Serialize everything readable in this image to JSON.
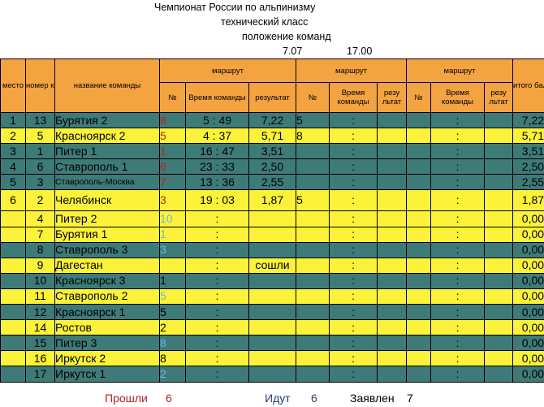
{
  "header": {
    "line1": "Чемпионат России по альпинизму",
    "line2": "технический класс",
    "line3": "положение команд",
    "date": "7.07",
    "time": "17.00"
  },
  "columns": {
    "place": "место",
    "team_number": "номер команды",
    "team_name": "название команды",
    "route": "маршрут",
    "num": "№",
    "team_time": "Время команды",
    "result": "результат",
    "team_time2": "Время команды",
    "result_short": "резу льтат",
    "result_short2": "резу льтат",
    "total": "итого баллов"
  },
  "rows": [
    {
      "place": "1",
      "num": "13",
      "name": "Бурятия 2",
      "r1n": "8",
      "r1n_color": "red",
      "r1t": "5 : 49",
      "r1r": "7,22",
      "r2n": "5",
      "r2t": ":",
      "r2r": "",
      "r3n": "",
      "r3t": ":",
      "r3r": "",
      "total": "7,22",
      "style": "t"
    },
    {
      "place": "2",
      "num": "5",
      "name": "Красноярск 2",
      "r1n": "5",
      "r1n_color": "red",
      "r1t": "4 : 37",
      "r1r": "5,71",
      "r2n": "8",
      "r2t": ":",
      "r2r": "",
      "r3n": "",
      "r3t": ":",
      "r3r": "",
      "total": "5,71",
      "style": "y"
    },
    {
      "place": "3",
      "num": "1",
      "name": "Питер 1",
      "r1n": "1",
      "r1n_color": "red",
      "r1t": "16 : 47",
      "r1r": "3,51",
      "r2n": "",
      "r2t": ":",
      "r2r": "",
      "r3n": "",
      "r3t": ":",
      "r3r": "",
      "total": "3,51",
      "style": "t"
    },
    {
      "place": "4",
      "num": "6",
      "name": "Ставрополь 1",
      "r1n": "6",
      "r1n_color": "red",
      "r1t": "23 : 33",
      "r1r": "2,50",
      "r2n": "",
      "r2t": ":",
      "r2r": "",
      "r3n": "",
      "r3t": ":",
      "r3r": "",
      "total": "2,50",
      "style": "t"
    },
    {
      "place": "5",
      "num": "3",
      "name": "Ставрополь-Москва",
      "r1n": "7",
      "r1n_color": "red",
      "r1t": "13 : 36",
      "r1r": "2,55",
      "r2n": "",
      "r2t": ":",
      "r2r": "",
      "r3n": "",
      "r3t": ":",
      "r3r": "",
      "total": "2,55",
      "style": "t",
      "small": true
    },
    {
      "place": "6",
      "num": "2",
      "name": "Челябинск",
      "r1n": "3",
      "r1n_color": "red",
      "r1t": "19 : 03",
      "r1r": "1,87",
      "r2n": "5",
      "r2t": ":",
      "r2r": "",
      "r3n": "",
      "r3t": ":",
      "r3r": "",
      "total": "1,87",
      "style": "y",
      "tall": true
    },
    {
      "place": "",
      "num": "4",
      "name": "Питер 2",
      "r1n": "10",
      "r1n_color": "blue",
      "r1t": ":",
      "r1r": "",
      "r2n": "",
      "r2t": ":",
      "r2r": "",
      "r3n": "",
      "r3t": ":",
      "r3r": "",
      "total": "0,00",
      "style": "y"
    },
    {
      "place": "",
      "num": "7",
      "name": "Бурятия 1",
      "r1n": "1",
      "r1n_color": "blue",
      "r1t": ":",
      "r1r": "",
      "r2n": "",
      "r2t": ":",
      "r2r": "",
      "r3n": "",
      "r3t": ":",
      "r3r": "",
      "total": "0,00",
      "style": "y"
    },
    {
      "place": "",
      "num": "8",
      "name": "Ставрополь 3",
      "r1n": "3",
      "r1n_color": "blue",
      "r1t": ":",
      "r1r": "",
      "r2n": "",
      "r2t": ":",
      "r2r": "",
      "r3n": "",
      "r3t": ":",
      "r3r": "",
      "total": "0,00",
      "style": "t"
    },
    {
      "place": "",
      "num": "9",
      "name": "Дагестан",
      "r1n": "",
      "r1n_color": "",
      "r1t": ":",
      "r1r": "сошли",
      "r2n": "",
      "r2t": ":",
      "r2r": "",
      "r3n": "",
      "r3t": ":",
      "r3r": "",
      "total": "0,00",
      "style": "y"
    },
    {
      "place": "",
      "num": "10",
      "name": "Красноярск 3",
      "r1n": "1",
      "r1n_color": "",
      "r1t": ":",
      "r1r": "",
      "r2n": "",
      "r2t": ":",
      "r2r": "",
      "r3n": "",
      "r3t": ":",
      "r3r": "",
      "total": "0,00",
      "style": "t"
    },
    {
      "place": "",
      "num": "11",
      "name": "Ставрополь 2",
      "r1n": "5",
      "r1n_color": "blue",
      "r1t": ":",
      "r1r": "",
      "r2n": "",
      "r2t": ":",
      "r2r": "",
      "r3n": "",
      "r3t": ":",
      "r3r": "",
      "total": "0,00",
      "style": "y"
    },
    {
      "place": "",
      "num": "12",
      "name": "Красноярск 1",
      "r1n": "5",
      "r1n_color": "",
      "r1t": ":",
      "r1r": "",
      "r2n": "",
      "r2t": ":",
      "r2r": "",
      "r3n": "",
      "r3t": ":",
      "r3r": "",
      "total": "0,00",
      "style": "t"
    },
    {
      "place": "",
      "num": "14",
      "name": "Ростов",
      "r1n": "2",
      "r1n_color": "",
      "r1t": ":",
      "r1r": "",
      "r2n": "",
      "r2t": ":",
      "r2r": "",
      "r3n": "",
      "r3t": ":",
      "r3r": "",
      "total": "0,00",
      "style": "y"
    },
    {
      "place": "",
      "num": "15",
      "name": "Питер 3",
      "r1n": "8",
      "r1n_color": "blue",
      "r1t": ":",
      "r1r": "",
      "r2n": "",
      "r2t": ":",
      "r2r": "",
      "r3n": "",
      "r3t": ":",
      "r3r": "",
      "total": "0,00",
      "style": "t"
    },
    {
      "place": "",
      "num": "16",
      "name": "Иркутск 2",
      "r1n": "8",
      "r1n_color": "",
      "r1t": ":",
      "r1r": "",
      "r2n": "",
      "r2t": ":",
      "r2r": "",
      "r3n": "",
      "r3t": ":",
      "r3r": "",
      "total": "0,00",
      "style": "y"
    },
    {
      "place": "",
      "num": "17",
      "name": "Иркутск 1",
      "r1n": "2",
      "r1n_color": "blue",
      "r1t": ":",
      "r1r": "",
      "r2n": "",
      "r2t": ":",
      "r2r": "",
      "r3n": "",
      "r3t": ":",
      "r3r": "",
      "total": "0,00",
      "style": "t"
    }
  ],
  "footer": {
    "passed_label": "Прошли",
    "passed_value": "6",
    "going_label": "Идут",
    "going_value": "6",
    "declared_label": "Заявлен",
    "declared_value": "7"
  },
  "colors": {
    "header_orange": "#f4a341",
    "row_yellow": "#fcf23a",
    "row_teal": "#3e7b78",
    "red_text": "#c21d1d",
    "blue_text": "#6ab7e6",
    "footer_red": "#b22222",
    "footer_navy": "#2a3a7a"
  }
}
